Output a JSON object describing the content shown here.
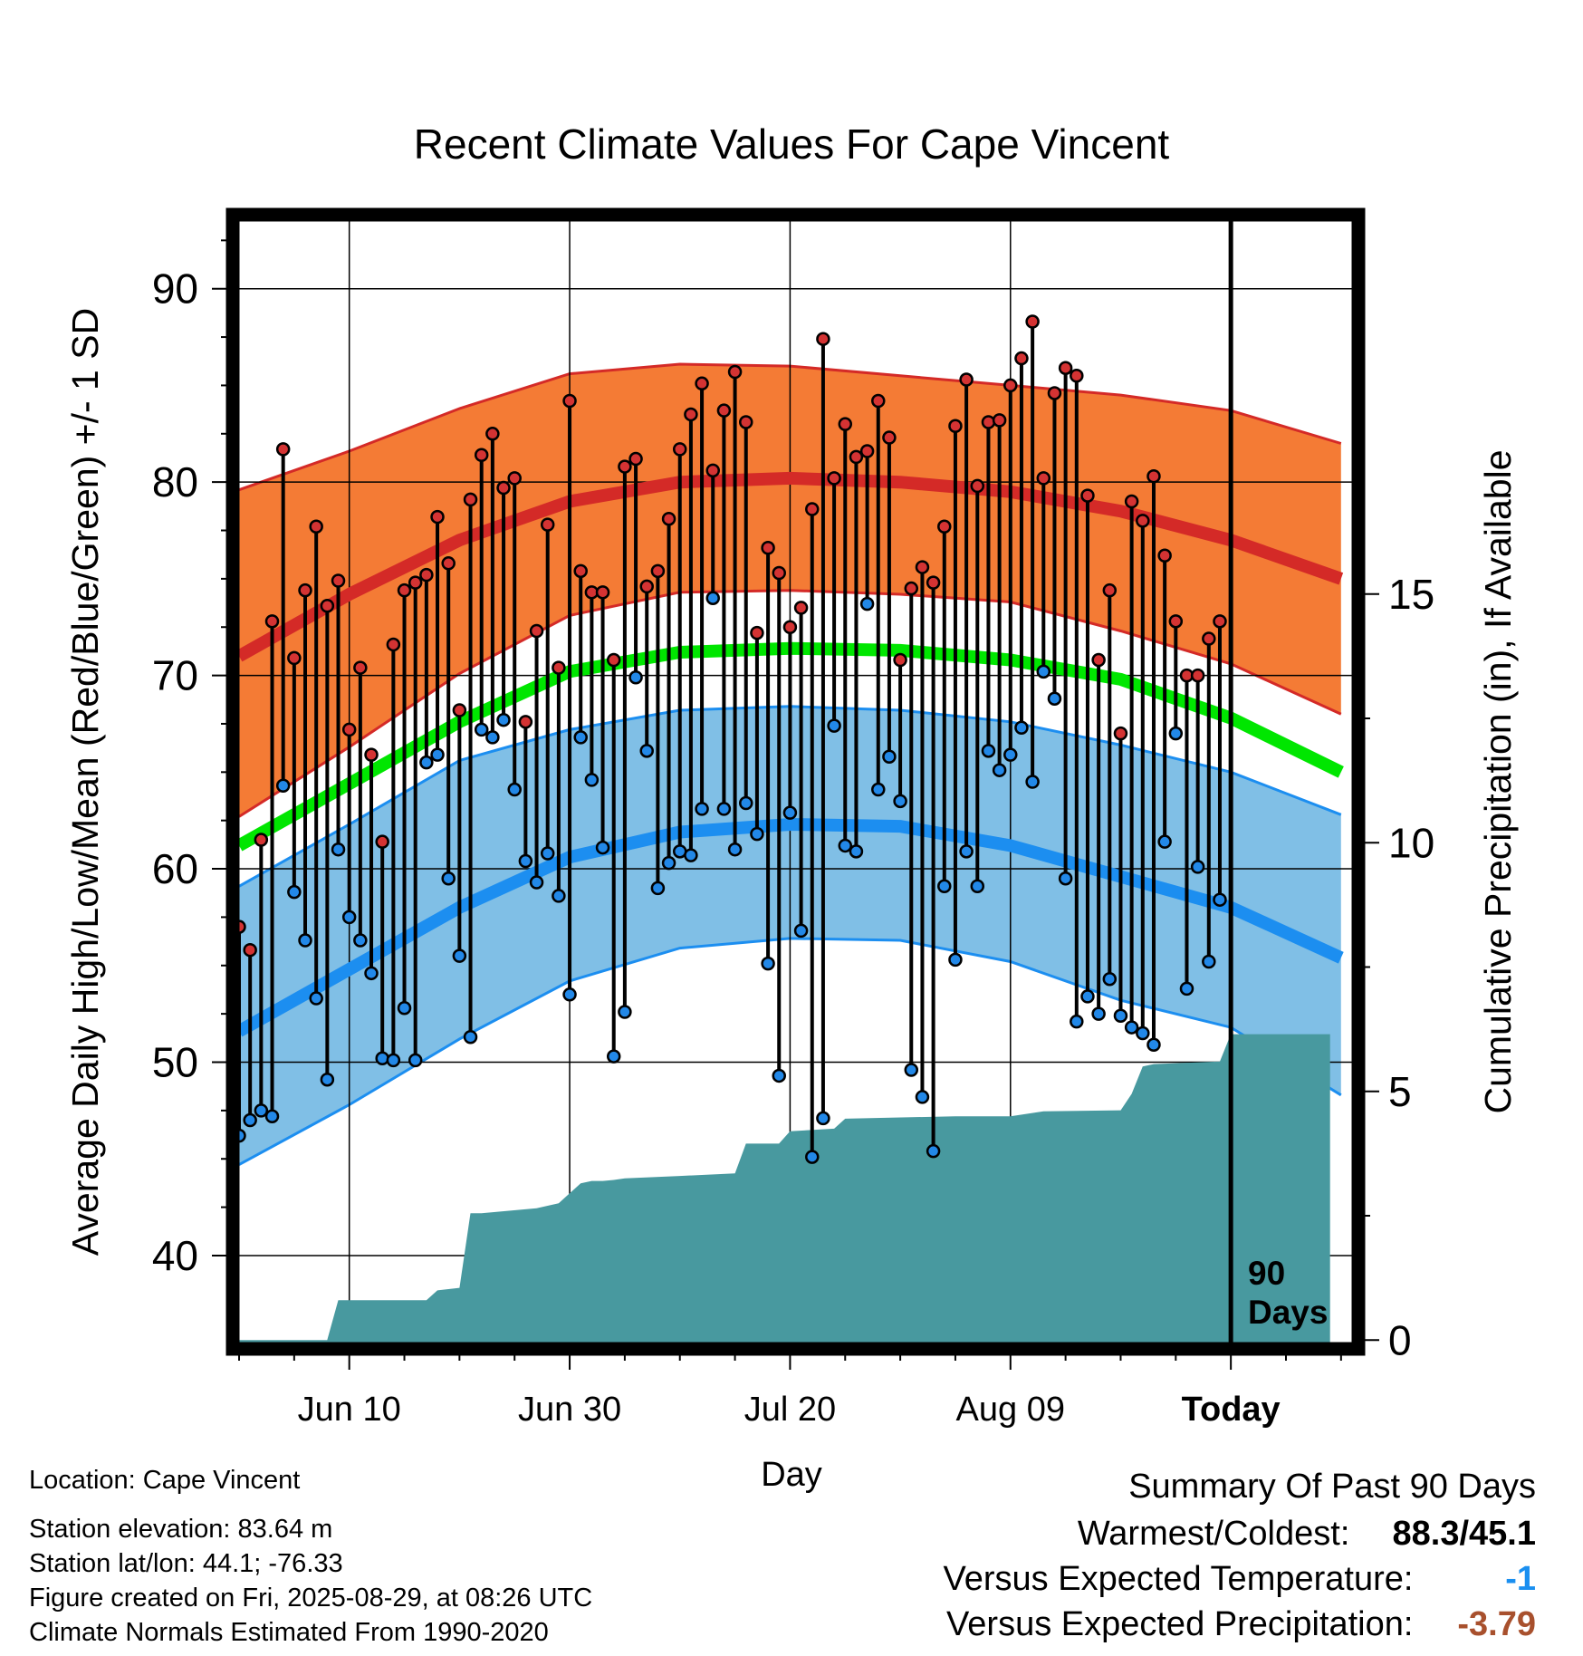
{
  "chart_data": {
    "type": "line",
    "title": "Recent Climate Values For Cape Vincent",
    "xlabel": "Day",
    "ylabel": "Average Daily High/Low/Mean (Red/Blue/Green) +/- 1 SD",
    "y2label": "Cumulative Precipitation (in), If Available",
    "xlim": [
      -10,
      91
    ],
    "ylim": [
      35.5,
      93.5
    ],
    "y2lim": [
      -0.05,
      22.5
    ],
    "x_ticks": [
      {
        "x": 0,
        "label": "Jun 10"
      },
      {
        "x": 20,
        "label": "Jun 30"
      },
      {
        "x": 40,
        "label": "Jul 20"
      },
      {
        "x": 60,
        "label": "Aug 09"
      },
      {
        "x": 80,
        "label": "Today"
      }
    ],
    "y_ticks": [
      40,
      50,
      60,
      70,
      80,
      90
    ],
    "y2_ticks": [
      0,
      5,
      10,
      15
    ],
    "grid": true,
    "annotation": "90 Days",
    "normals": {
      "x": [
        -10,
        0,
        10,
        20,
        30,
        40,
        50,
        60,
        70,
        80,
        90
      ],
      "high_mean": [
        71,
        74.2,
        77,
        79,
        80,
        80.2,
        80,
        79.5,
        78.5,
        77,
        75
      ],
      "high_upper": [
        79.6,
        81.6,
        83.8,
        85.6,
        86.1,
        86,
        85.5,
        85,
        84.5,
        83.7,
        82
      ],
      "high_lower": [
        62.7,
        66.3,
        70.1,
        73.1,
        74.3,
        74.4,
        74.2,
        73.8,
        72.3,
        70.6,
        68
      ],
      "mean": [
        61.2,
        64.4,
        67.6,
        70.2,
        71.2,
        71.4,
        71.3,
        70.8,
        69.8,
        67.8,
        65
      ],
      "low_mean": [
        51.6,
        54.8,
        58,
        60.6,
        61.9,
        62.3,
        62.2,
        61.2,
        59.6,
        58,
        55.4
      ],
      "low_upper": [
        59.1,
        62.3,
        65.6,
        67.2,
        68.2,
        68.4,
        68.2,
        67.6,
        66.4,
        65,
        62.8
      ],
      "low_lower": [
        44.7,
        47.8,
        51.2,
        54.2,
        55.9,
        56.4,
        56.3,
        55.2,
        53.2,
        51.8,
        48.3
      ]
    },
    "series": [
      {
        "name": "High",
        "x": [
          -10,
          -9,
          -8,
          -7,
          -6,
          -5,
          -4,
          -3,
          -2,
          -1,
          0,
          1,
          2,
          3,
          4,
          5,
          6,
          7,
          8,
          9,
          10,
          11,
          12,
          13,
          14,
          15,
          16,
          17,
          18,
          19,
          20,
          21,
          22,
          23,
          24,
          25,
          26,
          27,
          28,
          29,
          30,
          31,
          32,
          33,
          34,
          35,
          36,
          37,
          38,
          39,
          40,
          41,
          42,
          43,
          44,
          45,
          46,
          47,
          48,
          49,
          50,
          51,
          52,
          53,
          54,
          55,
          56,
          57,
          58,
          59,
          60,
          61,
          62,
          63,
          64,
          65,
          66,
          67,
          68,
          69,
          70,
          71,
          72,
          73,
          74,
          75,
          76,
          77,
          78,
          79
        ],
        "values": [
          57,
          55.8,
          61.5,
          72.8,
          81.7,
          70.9,
          74.4,
          77.7,
          73.6,
          74.9,
          67.2,
          70.4,
          65.9,
          61.4,
          71.6,
          74.4,
          74.8,
          75.2,
          78.2,
          75.8,
          68.2,
          79.1,
          81.4,
          82.5,
          79.7,
          80.2,
          67.6,
          72.3,
          77.8,
          70.4,
          84.2,
          75.4,
          74.3,
          74.3,
          70.8,
          80.8,
          81.2,
          74.6,
          75.4,
          78.1,
          81.7,
          83.5,
          85.1,
          80.6,
          83.7,
          85.7,
          83.1,
          72.2,
          76.6,
          75.3,
          72.5,
          73.5,
          78.6,
          87.4,
          80.2,
          83,
          81.3,
          81.6,
          84.2,
          82.3,
          70.8,
          74.5,
          75.6,
          74.8,
          77.7,
          82.9,
          85.3,
          79.8,
          83.1,
          83.2,
          85,
          86.4,
          88.3,
          80.2,
          84.6,
          85.9,
          85.5,
          79.3,
          70.8,
          74.4,
          67,
          79,
          78,
          80.3,
          76.2,
          72.8,
          70,
          70,
          71.9,
          72.8
        ]
      },
      {
        "name": "Low",
        "x": [
          -10,
          -9,
          -8,
          -7,
          -6,
          -5,
          -4,
          -3,
          -2,
          -1,
          0,
          1,
          2,
          3,
          4,
          5,
          6,
          7,
          8,
          9,
          10,
          11,
          12,
          13,
          14,
          15,
          16,
          17,
          18,
          19,
          20,
          21,
          22,
          23,
          24,
          25,
          26,
          27,
          28,
          29,
          30,
          31,
          32,
          33,
          34,
          35,
          36,
          37,
          38,
          39,
          40,
          41,
          42,
          43,
          44,
          45,
          46,
          47,
          48,
          49,
          50,
          51,
          52,
          53,
          54,
          55,
          56,
          57,
          58,
          59,
          60,
          61,
          62,
          63,
          64,
          65,
          66,
          67,
          68,
          69,
          70,
          71,
          72,
          73,
          74,
          75,
          76,
          77,
          78,
          79
        ],
        "values": [
          46.2,
          47,
          47.5,
          47.2,
          64.3,
          58.8,
          56.3,
          53.3,
          49.1,
          61,
          57.5,
          56.3,
          54.6,
          50.2,
          50.1,
          52.8,
          50.1,
          65.5,
          65.9,
          59.5,
          55.5,
          51.3,
          67.2,
          66.8,
          67.7,
          64.1,
          60.4,
          59.3,
          60.8,
          58.6,
          53.5,
          66.8,
          64.6,
          61.1,
          50.3,
          52.6,
          69.9,
          66.1,
          59,
          60.3,
          60.9,
          60.7,
          63.1,
          74,
          63.1,
          61,
          63.4,
          61.8,
          55.1,
          49.3,
          62.9,
          56.8,
          45.1,
          47.1,
          67.4,
          61.2,
          60.9,
          73.7,
          64.1,
          65.8,
          63.5,
          49.6,
          48.2,
          45.4,
          59.1,
          55.3,
          60.9,
          59.1,
          66.1,
          65.1,
          65.9,
          67.3,
          64.5,
          70.2,
          68.8,
          59.5,
          52.1,
          53.4,
          52.5,
          54.3,
          52.4,
          51.8,
          51.5,
          50.9,
          61.4,
          67,
          53.8,
          60.1,
          55.2,
          58.4
        ]
      },
      {
        "name": "Cumulative Precipitation",
        "x": [
          -10,
          -2,
          -1,
          7,
          8,
          10,
          11,
          12,
          17,
          18,
          19,
          20,
          21,
          22,
          23,
          24,
          25,
          30,
          35,
          36,
          39,
          40,
          44,
          45,
          55,
          60,
          63,
          70,
          71,
          72,
          73,
          79,
          80,
          89
        ],
        "values": [
          0,
          0,
          0.8,
          0.8,
          1,
          1.05,
          2.55,
          2.55,
          2.65,
          2.7,
          2.75,
          2.95,
          3.15,
          3.2,
          3.2,
          3.22,
          3.25,
          3.3,
          3.35,
          3.95,
          3.95,
          4.2,
          4.25,
          4.45,
          4.5,
          4.5,
          4.6,
          4.62,
          4.95,
          5.5,
          5.55,
          5.6,
          6.15,
          6.15
        ]
      }
    ]
  },
  "info": {
    "location": "Location: Cape Vincent",
    "elevation": "Station elevation: 83.64 m",
    "latlon": "Station lat/lon: 44.1; -76.33",
    "created": "Figure created on Fri, 2025-08-29, at 08:26 UTC",
    "normals": "Climate Normals Estimated From 1990-2020"
  },
  "summary": {
    "title": "Summary Of Past 90 Days",
    "warmest_label": "Warmest/Coldest:",
    "warmest_value": "88.3/45.1",
    "temp_label": "Versus Expected Temperature:",
    "temp_value": "-1",
    "precip_label": "Versus Expected Precipitation:",
    "precip_value": "-3.79"
  },
  "colors": {
    "high_band": "#f47b35",
    "high_line": "#d42a27",
    "low_band": "#80bfe6",
    "low_line": "#1c8ef0",
    "mean_line": "#00e600",
    "precip_fill": "#48999f",
    "high_marker": "#d43333",
    "low_marker": "#2288e8",
    "temp_value": "#1a8ff0",
    "precip_value": "#a8502d"
  }
}
